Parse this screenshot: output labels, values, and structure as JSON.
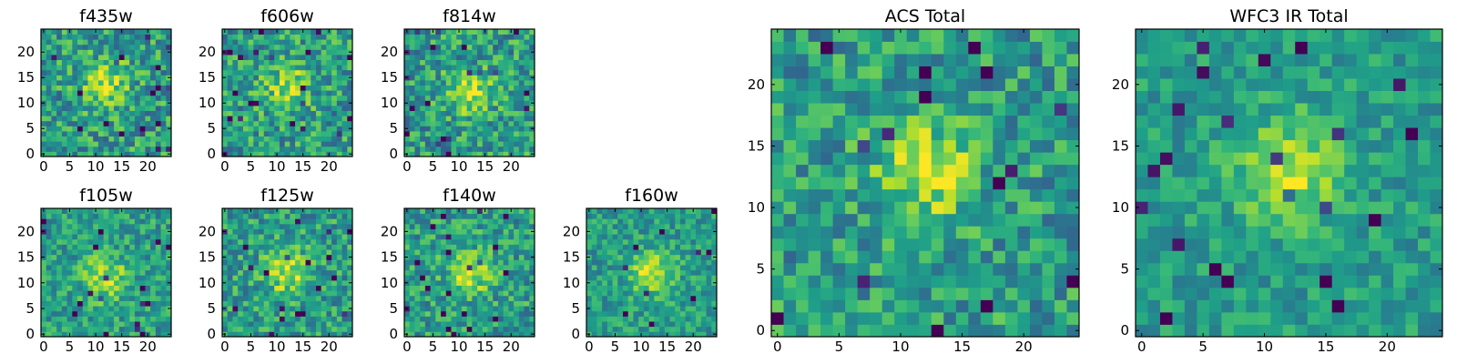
{
  "chart_data": [
    {
      "type": "heatmap",
      "title": "f435w",
      "xticks": [
        0,
        5,
        10,
        15,
        20
      ],
      "yticks": [
        0,
        5,
        10,
        15,
        20
      ],
      "xlim": [
        0,
        25
      ],
      "ylim": [
        0,
        25
      ],
      "colormap": "viridis",
      "grid": false,
      "peak": [
        12,
        14
      ],
      "noise_scale": 0.5
    },
    {
      "type": "heatmap",
      "title": "f606w",
      "xticks": [
        0,
        5,
        10,
        15,
        20
      ],
      "yticks": [
        0,
        5,
        10,
        15,
        20
      ],
      "xlim": [
        0,
        25
      ],
      "ylim": [
        0,
        25
      ],
      "colormap": "viridis",
      "grid": false,
      "peak": [
        12,
        13
      ],
      "noise_scale": 0.5
    },
    {
      "type": "heatmap",
      "title": "f814w",
      "xticks": [
        0,
        5,
        10,
        15,
        20
      ],
      "yticks": [
        0,
        5,
        10,
        15,
        20
      ],
      "xlim": [
        0,
        25
      ],
      "ylim": [
        0,
        25
      ],
      "colormap": "viridis",
      "grid": false,
      "peak": [
        12,
        12
      ],
      "noise_scale": 0.5
    },
    {
      "type": "heatmap",
      "title": "f105w",
      "xticks": [
        0,
        5,
        10,
        15,
        20
      ],
      "yticks": [
        0,
        5,
        10,
        15,
        20
      ],
      "xlim": [
        0,
        25
      ],
      "ylim": [
        0,
        25
      ],
      "colormap": "viridis",
      "grid": false,
      "peak": [
        12,
        11
      ],
      "noise_scale": 0.4
    },
    {
      "type": "heatmap",
      "title": "f125w",
      "xticks": [
        0,
        5,
        10,
        15,
        20
      ],
      "yticks": [
        0,
        5,
        10,
        15,
        20
      ],
      "xlim": [
        0,
        25
      ],
      "ylim": [
        0,
        25
      ],
      "colormap": "viridis",
      "grid": false,
      "peak": [
        12,
        12
      ],
      "noise_scale": 0.45
    },
    {
      "type": "heatmap",
      "title": "f140w",
      "xticks": [
        0,
        5,
        10,
        15,
        20
      ],
      "yticks": [
        0,
        5,
        10,
        15,
        20
      ],
      "xlim": [
        0,
        25
      ],
      "ylim": [
        0,
        25
      ],
      "colormap": "viridis",
      "grid": false,
      "peak": [
        12,
        12
      ],
      "noise_scale": 0.45
    },
    {
      "type": "heatmap",
      "title": "f160w",
      "xticks": [
        0,
        5,
        10,
        15,
        20
      ],
      "yticks": [
        0,
        5,
        10,
        15,
        20
      ],
      "xlim": [
        0,
        25
      ],
      "ylim": [
        0,
        25
      ],
      "colormap": "viridis",
      "grid": false,
      "peak": [
        12,
        12
      ],
      "noise_scale": 0.35
    },
    {
      "type": "heatmap",
      "title": "ACS Total",
      "xticks": [
        0,
        5,
        10,
        15,
        20
      ],
      "yticks": [
        0,
        5,
        10,
        15,
        20
      ],
      "xlim": [
        0,
        25
      ],
      "ylim": [
        0,
        25
      ],
      "colormap": "viridis",
      "grid": false,
      "peak": [
        12,
        13
      ],
      "noise_scale": 0.45
    },
    {
      "type": "heatmap",
      "title": "WFC3 IR Total",
      "xticks": [
        0,
        5,
        10,
        15,
        20
      ],
      "yticks": [
        0,
        5,
        10,
        15,
        20
      ],
      "xlim": [
        0,
        25
      ],
      "ylim": [
        0,
        25
      ],
      "colormap": "viridis",
      "grid": false,
      "peak": [
        12,
        13
      ],
      "noise_scale": 0.3
    }
  ]
}
